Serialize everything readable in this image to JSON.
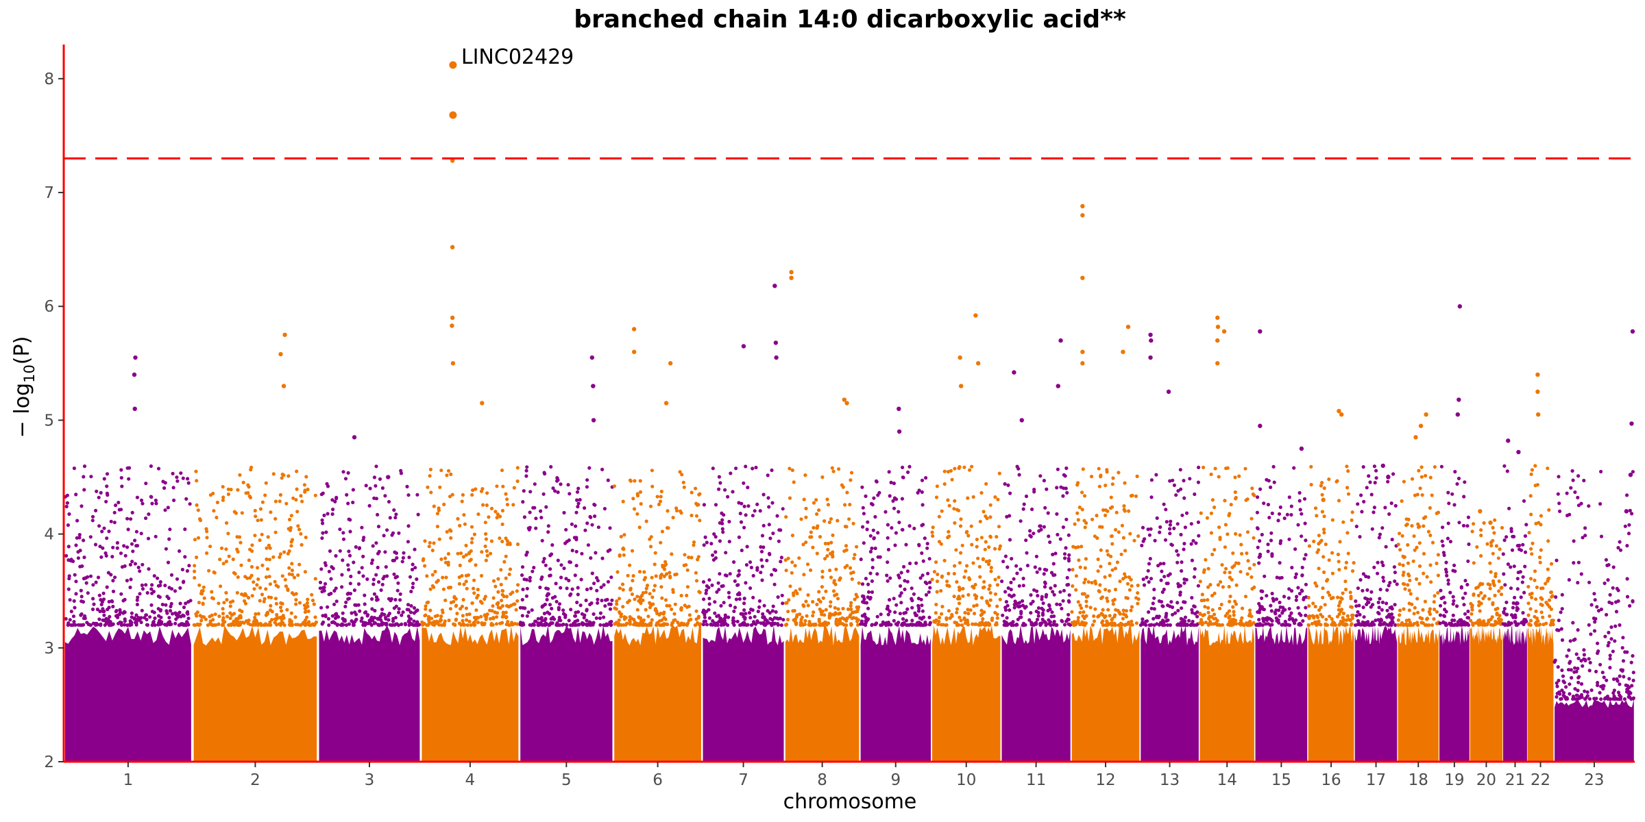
{
  "chart_data": {
    "type": "scatter",
    "subtype": "manhattan",
    "title": "branched chain 14:0 dicarboxylic acid**",
    "xlabel": "chromosome",
    "ylabel": "− log",
    "ylabel_sub": "10",
    "ylabel_tail": "(P)",
    "ylim": [
      2,
      8.3
    ],
    "yticks": [
      2,
      3,
      4,
      5,
      6,
      7,
      8
    ],
    "grid": false,
    "significance_line": 7.3,
    "colors": {
      "odd": "#8b008b",
      "even": "#ee7600",
      "threshold": "#ff0000",
      "axis": "#ff0000"
    },
    "chromosomes": [
      {
        "label": "1",
        "start": 0,
        "end": 248,
        "peak": 5.55,
        "hits": [
          [
            138,
            5.55
          ],
          [
            136,
            5.4
          ],
          [
            137,
            5.1
          ]
        ]
      },
      {
        "label": "2",
        "start": 248,
        "end": 490,
        "peak": 5.75,
        "hits": [
          [
            178,
            5.75
          ],
          [
            170,
            5.58
          ],
          [
            176,
            5.3
          ]
        ]
      },
      {
        "label": "3",
        "start": 490,
        "end": 688,
        "peak": 4.85,
        "hits": [
          [
            70,
            4.85
          ],
          [
            135,
            4.5
          ]
        ]
      },
      {
        "label": "4",
        "start": 688,
        "end": 878,
        "peak": 8.12,
        "hits": [
          [
            62,
            8.12
          ],
          [
            62,
            7.68
          ],
          [
            61,
            7.28
          ],
          [
            61,
            6.52
          ],
          [
            61,
            5.9
          ],
          [
            60,
            5.83
          ],
          [
            62,
            5.5
          ],
          [
            118,
            5.15
          ]
        ]
      },
      {
        "label": "5",
        "start": 878,
        "end": 1059,
        "peak": 5.55,
        "hits": [
          [
            140,
            5.55
          ],
          [
            142,
            5.3
          ],
          [
            143,
            5.0
          ]
        ]
      },
      {
        "label": "6",
        "start": 1059,
        "end": 1230,
        "peak": 5.8,
        "hits": [
          [
            40,
            5.8
          ],
          [
            40,
            5.6
          ],
          [
            110,
            5.5
          ],
          [
            102,
            5.15
          ]
        ]
      },
      {
        "label": "7",
        "start": 1230,
        "end": 1389,
        "peak": 6.18,
        "hits": [
          [
            140,
            6.18
          ],
          [
            142,
            5.68
          ],
          [
            143,
            5.55
          ],
          [
            80,
            5.65
          ]
        ]
      },
      {
        "label": "8",
        "start": 1389,
        "end": 1534,
        "peak": 6.3,
        "hits": [
          [
            13,
            6.3
          ],
          [
            13,
            6.25
          ],
          [
            115,
            5.18
          ],
          [
            120,
            5.15
          ]
        ]
      },
      {
        "label": "9",
        "start": 1534,
        "end": 1672,
        "peak": 5.1,
        "hits": [
          [
            75,
            5.1
          ],
          [
            76,
            4.9
          ]
        ]
      },
      {
        "label": "10",
        "start": 1672,
        "end": 1806,
        "peak": 5.92,
        "hits": [
          [
            85,
            5.92
          ],
          [
            55,
            5.55
          ],
          [
            57,
            5.3
          ],
          [
            90,
            5.5
          ]
        ]
      },
      {
        "label": "11",
        "start": 1806,
        "end": 1941,
        "peak": 5.7,
        "hits": [
          [
            115,
            5.7
          ],
          [
            25,
            5.42
          ],
          [
            110,
            5.3
          ],
          [
            40,
            5.0
          ]
        ]
      },
      {
        "label": "12",
        "start": 1941,
        "end": 2074,
        "peak": 6.88,
        "hits": [
          [
            22,
            6.88
          ],
          [
            22,
            6.8
          ],
          [
            22,
            6.25
          ],
          [
            22,
            5.6
          ],
          [
            22,
            5.5
          ],
          [
            110,
            5.82
          ],
          [
            100,
            5.6
          ]
        ]
      },
      {
        "label": "13",
        "start": 2074,
        "end": 2188,
        "peak": 5.75,
        "hits": [
          [
            20,
            5.75
          ],
          [
            21,
            5.7
          ],
          [
            20,
            5.55
          ],
          [
            55,
            5.25
          ]
        ]
      },
      {
        "label": "14",
        "start": 2188,
        "end": 2295,
        "peak": 5.9,
        "hits": [
          [
            35,
            5.9
          ],
          [
            36,
            5.82
          ],
          [
            35,
            5.7
          ],
          [
            35,
            5.5
          ],
          [
            48,
            5.78
          ]
        ]
      },
      {
        "label": "15",
        "start": 2295,
        "end": 2397,
        "peak": 5.78,
        "hits": [
          [
            10,
            5.78
          ],
          [
            10,
            4.95
          ],
          [
            90,
            4.75
          ]
        ]
      },
      {
        "label": "16",
        "start": 2397,
        "end": 2487,
        "peak": 5.08,
        "hits": [
          [
            60,
            5.08
          ],
          [
            65,
            5.05
          ],
          [
            30,
            4.3
          ]
        ]
      },
      {
        "label": "17",
        "start": 2487,
        "end": 2570,
        "peak": 4.6,
        "hits": [
          [
            55,
            4.6
          ],
          [
            65,
            4.5
          ]
        ]
      },
      {
        "label": "18",
        "start": 2570,
        "end": 2650,
        "peak": 5.05,
        "hits": [
          [
            55,
            5.05
          ],
          [
            45,
            4.95
          ],
          [
            35,
            4.85
          ]
        ]
      },
      {
        "label": "19",
        "start": 2650,
        "end": 2709,
        "peak": 6.0,
        "hits": [
          [
            40,
            6.0
          ],
          [
            38,
            5.18
          ],
          [
            36,
            5.05
          ]
        ]
      },
      {
        "label": "20",
        "start": 2709,
        "end": 2773,
        "peak": 4.2,
        "hits": [
          [
            20,
            4.2
          ],
          [
            40,
            4.1
          ]
        ]
      },
      {
        "label": "21",
        "start": 2773,
        "end": 2820,
        "peak": 4.82,
        "hits": [
          [
            10,
            4.82
          ],
          [
            30,
            4.72
          ]
        ]
      },
      {
        "label": "22",
        "start": 2820,
        "end": 2871,
        "peak": 5.4,
        "hits": [
          [
            20,
            5.4
          ],
          [
            20,
            5.25
          ],
          [
            21,
            5.05
          ]
        ]
      },
      {
        "label": "23",
        "start": 2871,
        "end": 3027,
        "peak": 5.78,
        "hits": [
          [
            152,
            5.78
          ],
          [
            150,
            4.97
          ],
          [
            148,
            4.52
          ],
          [
            140,
            4.2
          ]
        ]
      }
    ],
    "annotations": [
      {
        "text": "LINC02429",
        "chromosome": "4",
        "x": 62,
        "y": 8.12
      }
    ]
  }
}
